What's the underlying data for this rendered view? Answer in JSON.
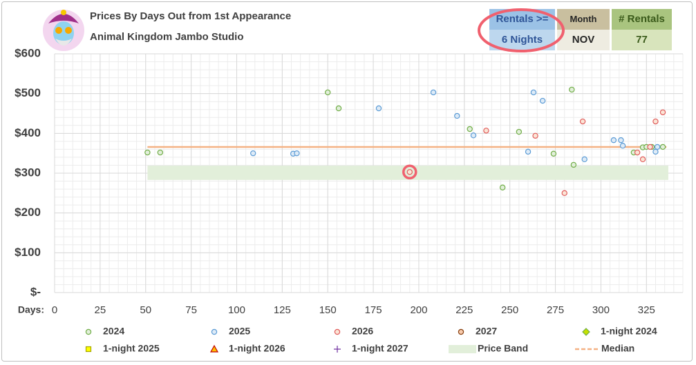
{
  "chart_data": {
    "type": "scatter",
    "title": "Prices By Days Out from 1st Appearance",
    "subtitle": "Animal Kingdom Jambo Studio",
    "filters": [
      {
        "header": "Rentals >=",
        "value": "6 Nights"
      },
      {
        "header": "Month",
        "value": "NOV"
      },
      {
        "header": "# Rentals",
        "value": 77
      }
    ],
    "x_label": "Days:",
    "xlim": [
      0,
      345
    ],
    "xticks": [
      0,
      25,
      50,
      75,
      100,
      125,
      150,
      175,
      200,
      225,
      250,
      275,
      300,
      325
    ],
    "ylim": [
      0,
      600
    ],
    "yticks": [
      {
        "value": 0,
        "label": "$-"
      },
      {
        "value": 100,
        "label": "$100"
      },
      {
        "value": 200,
        "label": "$200"
      },
      {
        "value": 300,
        "label": "$300"
      },
      {
        "value": 400,
        "label": "$400"
      },
      {
        "value": 500,
        "label": "$500"
      },
      {
        "value": 600,
        "label": "$600"
      }
    ],
    "grid": true,
    "x_minor_step": 5,
    "y_minor_step": 20,
    "series": [
      {
        "name": "2024",
        "color": "#70ad47",
        "fill": "#e2efda",
        "marker": "circle",
        "x": [
          51,
          58,
          150,
          156,
          228,
          246,
          255,
          274,
          284,
          285,
          318,
          323,
          325,
          328,
          334
        ],
        "values": [
          352,
          352,
          503,
          463,
          411,
          264,
          404,
          349,
          510,
          321,
          352,
          365,
          366,
          366,
          366
        ]
      },
      {
        "name": "2025",
        "color": "#5b9bd5",
        "fill": "#deebf7",
        "marker": "circle",
        "x": [
          109,
          131,
          133,
          178,
          208,
          221,
          230,
          260,
          263,
          268,
          291,
          307,
          311,
          312,
          330,
          331
        ],
        "values": [
          350,
          349,
          350,
          463,
          503,
          444,
          395,
          354,
          503,
          482,
          335,
          383,
          383,
          369,
          354,
          366
        ]
      },
      {
        "name": "2026",
        "color": "#e05a5a",
        "fill": "#fbe5d6",
        "marker": "circle",
        "x": [
          195,
          237,
          264,
          280,
          290,
          320,
          323,
          327,
          330,
          334
        ],
        "values": [
          303,
          407,
          394,
          250,
          430,
          352,
          335,
          366,
          430,
          453
        ]
      },
      {
        "name": "2027",
        "color": "#843c0c",
        "fill": "#f8cbad",
        "marker": "circle",
        "x": [],
        "values": []
      },
      {
        "name": "1-night 2024",
        "color": "#70ad47",
        "fill": "#c5e000",
        "marker": "diamond",
        "x": [],
        "values": []
      },
      {
        "name": "1-night 2025",
        "color": "#a5a500",
        "fill": "#ffff00",
        "marker": "square",
        "x": [],
        "values": []
      },
      {
        "name": "1-night 2026",
        "color": "#c00000",
        "fill": "#ffc000",
        "marker": "triangle",
        "x": [],
        "values": []
      },
      {
        "name": "1-night 2027",
        "color": "#7030a0",
        "fill": "#7030a0",
        "marker": "plus",
        "x": [],
        "values": []
      }
    ],
    "price_band": {
      "name": "Price Band",
      "color": "#e2efda",
      "low": 283,
      "high": 319,
      "x": [
        51,
        337
      ]
    },
    "median": {
      "name": "Median",
      "color": "#f4b183",
      "value": 366,
      "x": [
        51,
        336
      ]
    }
  }
}
